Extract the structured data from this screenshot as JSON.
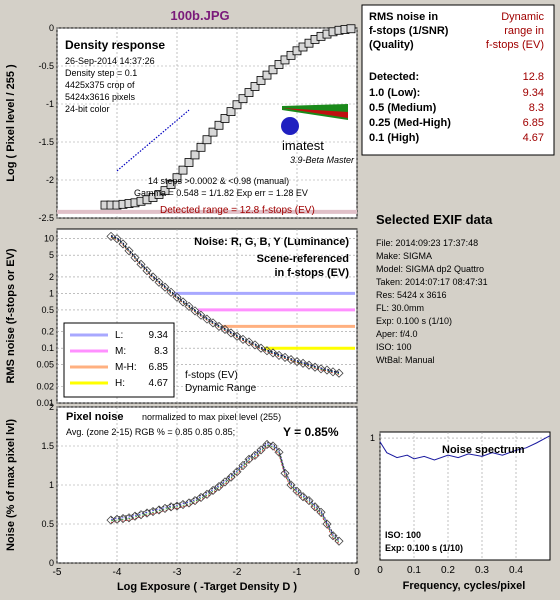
{
  "title": "100b.JPG",
  "colors": {
    "bg": "#d4d0c8",
    "title": "#7a1a7a",
    "detected": "#a00000",
    "red": "#a00000"
  },
  "density": {
    "heading": "Density response",
    "info": [
      "26-Sep-2014 14:37:26",
      "Density step = 0.1",
      "4425x375 crop of",
      "5424x3616 pixels",
      "24-bit color"
    ],
    "steps_line": "14 steps >0.0002 & <0.98 (manual)",
    "gamma_line": "Gamma = 0.548 = 1/1.82  Exp err = 1.28 EV",
    "detected_line": "Detected range = 12.8 f-stops (EV)",
    "logo": "imatest",
    "version": "3.9-Beta  Master",
    "ylabel": "Log ( Pixel level / 255 )"
  },
  "noise_panel": {
    "heading": "Noise: R, G, B, Y (Luminance)",
    "scene1": "Scene-referenced",
    "scene2": "in f-stops (EV)",
    "ylabel": "RMS noise (f-stops or EV)",
    "note1": "f-stops (EV)",
    "note2": "Dynamic Range",
    "legend": [
      {
        "label": "L:",
        "value": "9.34",
        "color": "#a8a8ff"
      },
      {
        "label": "M:",
        "value": "8.3",
        "color": "#ff90ff"
      },
      {
        "label": "M-H:",
        "value": "6.85",
        "color": "#ffb080"
      },
      {
        "label": "H:",
        "value": "4.67",
        "color": "#ffff00"
      }
    ]
  },
  "pixel_panel": {
    "heading": "Pixel noise",
    "normalized": "normalized to max pixel level (255)",
    "avg": "Avg. (zone 2-15) RGB % = 0.85  0.85  0.85;",
    "y": "Y = 0.85%",
    "ylabel": "Noise (% of max pixel lvl)",
    "xlabel": "Log Exposure ( -Target Density D )"
  },
  "table": {
    "h1": "RMS noise in",
    "h2": "f-stops (1/SNR)",
    "h3": "(Quality)",
    "r1": "Dynamic",
    "r2": "range in",
    "r3": "f-stops (EV)",
    "rows": [
      {
        "label": "Detected:",
        "value": "12.8"
      },
      {
        "label": "1.0   (Low):",
        "value": "9.34"
      },
      {
        "label": "0.5   (Medium)",
        "value": "8.3"
      },
      {
        "label": "0.25 (Med-High)",
        "value": "6.85"
      },
      {
        "label": "0.1   (High)",
        "value": "4.67"
      }
    ]
  },
  "exif": {
    "heading": "Selected EXIF data",
    "rows": [
      "File:  2014:09:23 17:37:48",
      "Make:  SIGMA",
      "Model: SIGMA dp2 Quattro",
      "Taken: 2014:07:17 08:47:31",
      "Res:   5424 x 3616",
      "FL:  30.0mm",
      "Exp:  0.100 s  (1/10)",
      "Aper:  f/4.0",
      "ISO:  100",
      "WtBal: Manual"
    ]
  },
  "spectrum": {
    "title": "Noise spectrum",
    "iso": "ISO:   100",
    "exp": "Exp:  0.100 s  (1/10)",
    "xlabel": "Frequency, cycles/pixel",
    "ytick": "1"
  },
  "chart_data": [
    {
      "type": "line",
      "title": "Density response",
      "ylabel": "Log ( Pixel level / 255 )",
      "xlim": [
        -5,
        0
      ],
      "ylim": [
        -2.5,
        0
      ],
      "xticks": [
        -5,
        -4,
        -3,
        -2,
        -1,
        0
      ],
      "yticks": [
        0,
        -0.5,
        -1,
        -1.5,
        -2,
        -2.5
      ],
      "x": [
        -4.2,
        -4.1,
        -4.0,
        -3.9,
        -3.8,
        -3.7,
        -3.6,
        -3.5,
        -3.4,
        -3.3,
        -3.2,
        -3.1,
        -3.0,
        -2.9,
        -2.8,
        -2.7,
        -2.6,
        -2.5,
        -2.4,
        -2.3,
        -2.2,
        -2.1,
        -2.0,
        -1.9,
        -1.8,
        -1.7,
        -1.6,
        -1.5,
        -1.4,
        -1.3,
        -1.2,
        -1.1,
        -1.0,
        -0.9,
        -0.8,
        -0.7,
        -0.6,
        -0.5,
        -0.4,
        -0.3,
        -0.2,
        -0.1
      ],
      "y": [
        -2.33,
        -2.33,
        -2.33,
        -2.32,
        -2.31,
        -2.3,
        -2.28,
        -2.26,
        -2.23,
        -2.19,
        -2.14,
        -2.06,
        -1.97,
        -1.87,
        -1.77,
        -1.67,
        -1.57,
        -1.47,
        -1.37,
        -1.28,
        -1.19,
        -1.1,
        -1.01,
        -0.93,
        -0.85,
        -0.77,
        -0.69,
        -0.62,
        -0.55,
        -0.48,
        -0.42,
        -0.36,
        -0.3,
        -0.25,
        -0.2,
        -0.15,
        -0.11,
        -0.08,
        -0.05,
        -0.03,
        -0.02,
        -0.01
      ],
      "fit_line": {
        "x": [
          -4.0,
          -2.8
        ],
        "y": [
          -1.88,
          -1.08
        ]
      }
    },
    {
      "type": "line",
      "title": "Noise: R, G, B, Y (Luminance)",
      "ylabel": "RMS noise (f-stops or EV)",
      "scale": "log",
      "xlim": [
        -5,
        0
      ],
      "ylim": [
        0.01,
        15
      ],
      "yticks": [
        10,
        5,
        2,
        1,
        0.5,
        0.2,
        0.1,
        0.05,
        0.02,
        0.01
      ],
      "x": [
        -4.1,
        -4.0,
        -3.9,
        -3.8,
        -3.7,
        -3.6,
        -3.5,
        -3.4,
        -3.3,
        -3.2,
        -3.1,
        -3.0,
        -2.9,
        -2.8,
        -2.7,
        -2.6,
        -2.5,
        -2.4,
        -2.3,
        -2.2,
        -2.1,
        -2.0,
        -1.9,
        -1.8,
        -1.7,
        -1.6,
        -1.5,
        -1.4,
        -1.3,
        -1.2,
        -1.1,
        -1.0,
        -0.9,
        -0.8,
        -0.7,
        -0.6,
        -0.5,
        -0.4,
        -0.3
      ],
      "y": [
        11,
        10,
        8,
        6,
        4.5,
        3.4,
        2.6,
        2.0,
        1.6,
        1.3,
        1.05,
        0.85,
        0.7,
        0.58,
        0.48,
        0.4,
        0.34,
        0.29,
        0.25,
        0.22,
        0.19,
        0.165,
        0.145,
        0.13,
        0.115,
        0.1,
        0.09,
        0.082,
        0.074,
        0.068,
        0.062,
        0.057,
        0.053,
        0.049,
        0.045,
        0.042,
        0.04,
        0.037,
        0.035
      ],
      "thresholds": [
        {
          "name": "L",
          "y": 1.0,
          "x_start": -3.05,
          "color": "#a8a8ff"
        },
        {
          "name": "M",
          "y": 0.5,
          "x_start": -2.65,
          "color": "#ff90ff"
        },
        {
          "name": "M-H",
          "y": 0.25,
          "x_start": -2.25,
          "color": "#ffb080"
        },
        {
          "name": "H",
          "y": 0.1,
          "x_start": -1.55,
          "color": "#ffff00"
        }
      ]
    },
    {
      "type": "line",
      "title": "Pixel noise",
      "ylabel": "Noise (% of max pixel lvl)",
      "xlabel": "Log Exposure ( -Target Density D )",
      "xlim": [
        -5,
        0
      ],
      "ylim": [
        0,
        2
      ],
      "xticks": [
        -5,
        -4,
        -3,
        -2,
        -1,
        0
      ],
      "yticks": [
        0,
        0.5,
        1,
        1.5,
        2
      ],
      "x": [
        -4.1,
        -4.0,
        -3.9,
        -3.8,
        -3.7,
        -3.6,
        -3.5,
        -3.4,
        -3.3,
        -3.2,
        -3.1,
        -3.0,
        -2.9,
        -2.8,
        -2.7,
        -2.6,
        -2.5,
        -2.4,
        -2.3,
        -2.2,
        -2.1,
        -2.0,
        -1.9,
        -1.8,
        -1.7,
        -1.6,
        -1.5,
        -1.4,
        -1.3,
        -1.2,
        -1.1,
        -1.0,
        -0.9,
        -0.8,
        -0.7,
        -0.6,
        -0.5,
        -0.4,
        -0.3
      ],
      "y": [
        0.55,
        0.56,
        0.57,
        0.58,
        0.6,
        0.62,
        0.64,
        0.66,
        0.68,
        0.7,
        0.72,
        0.73,
        0.75,
        0.77,
        0.8,
        0.84,
        0.88,
        0.93,
        0.98,
        1.04,
        1.1,
        1.17,
        1.25,
        1.33,
        1.38,
        1.45,
        1.52,
        1.5,
        1.42,
        1.15,
        1.0,
        0.92,
        0.85,
        0.8,
        0.72,
        0.65,
        0.5,
        0.35,
        0.28
      ]
    },
    {
      "type": "line",
      "title": "Noise spectrum",
      "xlabel": "Frequency, cycles/pixel",
      "xlim": [
        0,
        0.5
      ],
      "xticks": [
        0,
        0.1,
        0.2,
        0.3,
        0.4
      ],
      "yticks": [
        1
      ],
      "x": [
        0,
        0.02,
        0.05,
        0.08,
        0.1,
        0.13,
        0.16,
        0.2,
        0.23,
        0.26,
        0.3,
        0.33,
        0.36,
        0.4,
        0.43,
        0.46,
        0.5
      ],
      "y": [
        0.97,
        0.88,
        0.84,
        0.86,
        0.83,
        0.85,
        0.82,
        0.86,
        0.84,
        0.87,
        0.85,
        0.88,
        0.86,
        0.9,
        0.92,
        0.96,
        1.02
      ]
    }
  ]
}
